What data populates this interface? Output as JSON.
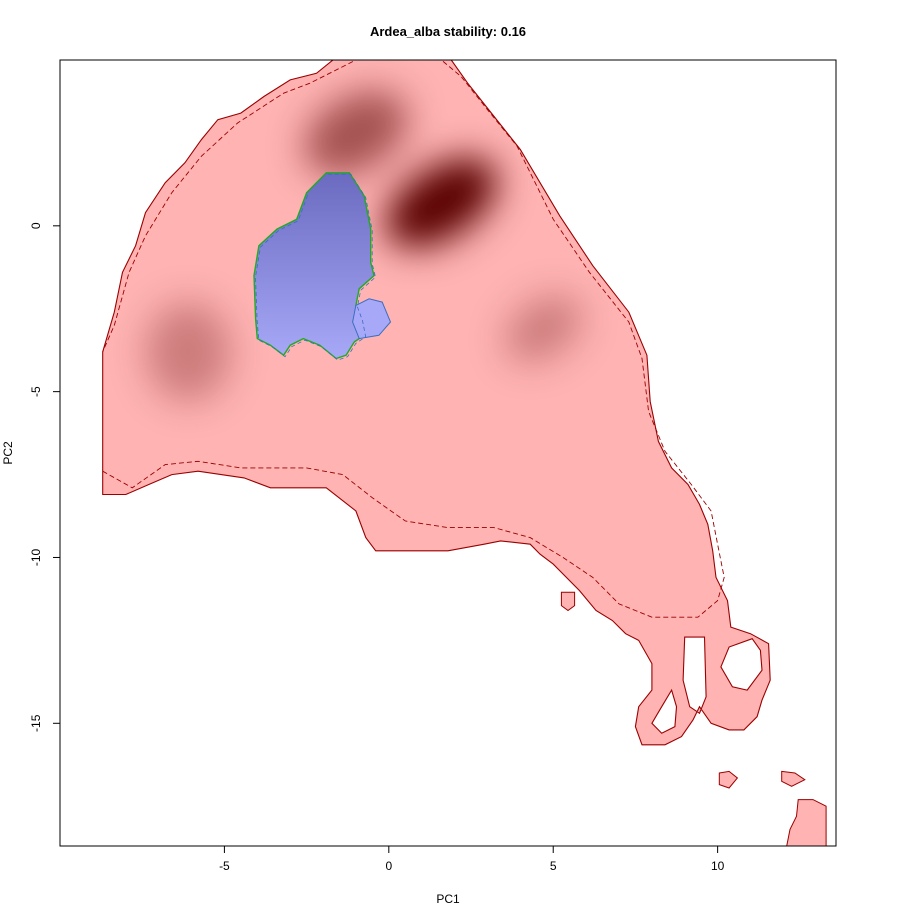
{
  "chart_data": {
    "type": "heatmap",
    "title": "Ardea_alba stability: 0.16",
    "xlabel": "PC1",
    "ylabel": "PC2",
    "xlim": [
      -10,
      13.6
    ],
    "ylim": [
      -18.7,
      5
    ],
    "x_ticks": [
      -5,
      0,
      5,
      10
    ],
    "y_ticks": [
      0,
      -5,
      -10,
      -15
    ],
    "grid": false,
    "colors": {
      "niche_fill": "#ffb3b3",
      "density_peak": "#5a0000",
      "overlap_fill": "#a8a8f8",
      "overlap_dark": "#6a6ac0",
      "niche_outline": "#9b0000",
      "overlap_outline": "#22aa22",
      "overlap_inner": "#3a6ec0"
    },
    "niche_outline": [
      [
        -5,
        5
      ],
      [
        -1.7,
        5
      ],
      [
        1.9,
        5
      ],
      [
        2.4,
        4.3
      ],
      [
        3.2,
        3.3
      ],
      [
        4.0,
        2.3
      ],
      [
        5.2,
        0.3
      ],
      [
        6.2,
        -1.2
      ],
      [
        7.3,
        -2.6
      ],
      [
        7.85,
        -3.9
      ],
      [
        7.95,
        -5.3
      ],
      [
        8.2,
        -6.5
      ],
      [
        8.6,
        -7.3
      ],
      [
        9.1,
        -7.8
      ],
      [
        9.45,
        -8.4
      ],
      [
        9.7,
        -9.0
      ],
      [
        9.85,
        -9.8
      ],
      [
        9.95,
        -10.6
      ],
      [
        10.3,
        -11.3
      ],
      [
        10.4,
        -12.1
      ],
      [
        11.0,
        -12.3
      ],
      [
        11.55,
        -12.6
      ],
      [
        11.6,
        -13.7
      ],
      [
        11.35,
        -14.3
      ],
      [
        11.2,
        -14.8
      ],
      [
        10.8,
        -15.2
      ],
      [
        10.35,
        -15.2
      ],
      [
        9.8,
        -15.0
      ],
      [
        9.45,
        -14.5
      ],
      [
        9.25,
        -14.9
      ],
      [
        8.9,
        -15.4
      ],
      [
        8.4,
        -15.65
      ],
      [
        7.7,
        -15.65
      ],
      [
        7.5,
        -15.1
      ],
      [
        7.6,
        -14.5
      ],
      [
        8.0,
        -14.0
      ],
      [
        8.0,
        -13.2
      ],
      [
        7.6,
        -12.5
      ],
      [
        7.2,
        -12.3
      ],
      [
        6.8,
        -11.9
      ],
      [
        6.3,
        -11.6
      ],
      [
        5.8,
        -11.0
      ],
      [
        5.0,
        -10.2
      ],
      [
        4.6,
        -9.9
      ],
      [
        4.3,
        -9.6
      ],
      [
        3.4,
        -9.5
      ],
      [
        2.9,
        -9.6
      ],
      [
        1.8,
        -9.8
      ],
      [
        0.6,
        -9.8
      ],
      [
        -0.4,
        -9.8
      ],
      [
        -0.7,
        -9.4
      ],
      [
        -1.0,
        -8.6
      ],
      [
        -1.9,
        -7.9
      ],
      [
        -3.6,
        -7.9
      ],
      [
        -4.4,
        -7.6
      ],
      [
        -5.8,
        -7.4
      ],
      [
        -6.6,
        -7.5
      ],
      [
        -7.3,
        -7.8
      ],
      [
        -8.0,
        -8.1
      ],
      [
        -8.7,
        -8.1
      ],
      [
        -8.7,
        -3.8
      ],
      [
        -8.35,
        -2.6
      ],
      [
        -8.1,
        -1.4
      ],
      [
        -7.7,
        -0.6
      ],
      [
        -7.4,
        0.4
      ],
      [
        -6.8,
        1.3
      ],
      [
        -6.2,
        1.9
      ],
      [
        -5.7,
        2.6
      ],
      [
        -5.2,
        3.2
      ],
      [
        -4.5,
        3.4
      ],
      [
        -3.8,
        3.9
      ],
      [
        -3.0,
        4.4
      ],
      [
        -2.2,
        4.6
      ],
      [
        -1.7,
        5.0
      ]
    ],
    "niche_outline_inner": [
      [
        -8.7,
        -7.4
      ],
      [
        -7.8,
        -7.9
      ],
      [
        -6.8,
        -7.2
      ],
      [
        -5.8,
        -7.1
      ],
      [
        -4.5,
        -7.3
      ],
      [
        -2.5,
        -7.3
      ],
      [
        -1.4,
        -7.5
      ],
      [
        -0.5,
        -8.2
      ],
      [
        0.5,
        -8.9
      ],
      [
        1.8,
        -9.1
      ],
      [
        3.2,
        -9.1
      ],
      [
        4.3,
        -9.4
      ],
      [
        5.3,
        -10.0
      ],
      [
        6.2,
        -10.6
      ],
      [
        7.0,
        -11.4
      ],
      [
        8.0,
        -11.8
      ],
      [
        9.4,
        -11.8
      ],
      [
        10.0,
        -11.3
      ],
      [
        10.2,
        -10.6
      ],
      [
        10.0,
        -9.6
      ],
      [
        9.8,
        -8.6
      ],
      [
        9.2,
        -7.8
      ],
      [
        8.4,
        -6.8
      ],
      [
        7.9,
        -5.6
      ],
      [
        7.7,
        -4.0
      ],
      [
        7.3,
        -2.9
      ],
      [
        6.1,
        -1.4
      ],
      [
        5.0,
        0.2
      ],
      [
        3.9,
        2.4
      ],
      [
        3.0,
        3.5
      ],
      [
        2.2,
        4.5
      ],
      [
        1.6,
        5.0
      ],
      [
        -1.0,
        5.0
      ],
      [
        -2.4,
        4.3
      ],
      [
        -3.2,
        4.0
      ],
      [
        -4.6,
        3.1
      ],
      [
        -5.7,
        2.1
      ],
      [
        -6.6,
        1.0
      ],
      [
        -7.4,
        -0.3
      ],
      [
        -7.9,
        -1.4
      ],
      [
        -8.35,
        -3.0
      ],
      [
        -8.7,
        -3.8
      ]
    ],
    "niche_islands": [
      [
        [
          5.25,
          -11.05
        ],
        [
          5.65,
          -11.05
        ],
        [
          5.65,
          -11.45
        ],
        [
          5.45,
          -11.6
        ],
        [
          5.25,
          -11.45
        ]
      ],
      [
        [
          10.05,
          -16.5
        ],
        [
          10.35,
          -16.45
        ],
        [
          10.6,
          -16.65
        ],
        [
          10.35,
          -16.95
        ],
        [
          10.05,
          -16.85
        ]
      ],
      [
        [
          11.95,
          -16.45
        ],
        [
          12.35,
          -16.5
        ],
        [
          12.65,
          -16.7
        ],
        [
          12.25,
          -16.9
        ],
        [
          11.95,
          -16.75
        ]
      ],
      [
        [
          12.45,
          -17.3
        ],
        [
          12.9,
          -17.3
        ],
        [
          13.3,
          -17.5
        ],
        [
          13.3,
          -18.7
        ],
        [
          12.1,
          -18.7
        ],
        [
          12.2,
          -18.2
        ],
        [
          12.4,
          -17.8
        ]
      ]
    ],
    "niche_holes": [
      [
        [
          9.0,
          -12.4
        ],
        [
          9.6,
          -12.4
        ],
        [
          9.65,
          -14.2
        ],
        [
          9.45,
          -14.7
        ],
        [
          9.15,
          -14.5
        ],
        [
          8.95,
          -13.7
        ]
      ],
      [
        [
          8.6,
          -14.0
        ],
        [
          8.3,
          -14.5
        ],
        [
          8.0,
          -15.0
        ],
        [
          8.3,
          -15.3
        ],
        [
          8.7,
          -15.1
        ],
        [
          8.75,
          -14.5
        ]
      ],
      [
        [
          11.05,
          -12.45
        ],
        [
          11.3,
          -12.8
        ],
        [
          11.35,
          -13.4
        ],
        [
          10.9,
          -14.0
        ],
        [
          10.45,
          -13.9
        ],
        [
          10.1,
          -13.3
        ],
        [
          10.35,
          -12.7
        ]
      ]
    ],
    "density_peaks": [
      {
        "x": 1.6,
        "y": 0.7,
        "rx": 1.9,
        "ry": 1.05,
        "angle": -33,
        "weight": 1.0
      },
      {
        "x": -1.0,
        "y": 2.8,
        "rx": 1.7,
        "ry": 1.1,
        "angle": -30,
        "weight": 0.55
      },
      {
        "x": 4.7,
        "y": -3.1,
        "rx": 1.3,
        "ry": 0.85,
        "angle": -35,
        "weight": 0.3
      },
      {
        "x": -6.1,
        "y": -3.8,
        "rx": 1.3,
        "ry": 1.5,
        "angle": 0,
        "weight": 0.3
      }
    ],
    "overlap_outline": [
      [
        -1.9,
        1.6
      ],
      [
        -1.2,
        1.6
      ],
      [
        -0.75,
        0.9
      ],
      [
        -0.55,
        -0.1
      ],
      [
        -0.55,
        -1.1
      ],
      [
        -0.45,
        -1.5
      ],
      [
        -0.9,
        -1.9
      ],
      [
        -1.0,
        -2.4
      ],
      [
        -0.85,
        -2.8
      ],
      [
        -0.75,
        -3.3
      ],
      [
        -1.05,
        -3.5
      ],
      [
        -1.3,
        -3.9
      ],
      [
        -1.6,
        -4.0
      ],
      [
        -2.1,
        -3.6
      ],
      [
        -2.6,
        -3.4
      ],
      [
        -3.0,
        -3.6
      ],
      [
        -3.2,
        -3.9
      ],
      [
        -3.6,
        -3.6
      ],
      [
        -4.0,
        -3.4
      ],
      [
        -4.05,
        -2.8
      ],
      [
        -4.1,
        -1.5
      ],
      [
        -3.95,
        -0.6
      ],
      [
        -3.4,
        -0.1
      ],
      [
        -2.8,
        0.2
      ],
      [
        -2.5,
        1.0
      ]
    ],
    "overlap_satellite": [
      [
        -1.0,
        -2.4
      ],
      [
        -0.6,
        -2.2
      ],
      [
        -0.2,
        -2.3
      ],
      [
        0.05,
        -2.9
      ],
      [
        -0.3,
        -3.3
      ],
      [
        -0.9,
        -3.4
      ],
      [
        -1.1,
        -2.9
      ]
    ]
  }
}
